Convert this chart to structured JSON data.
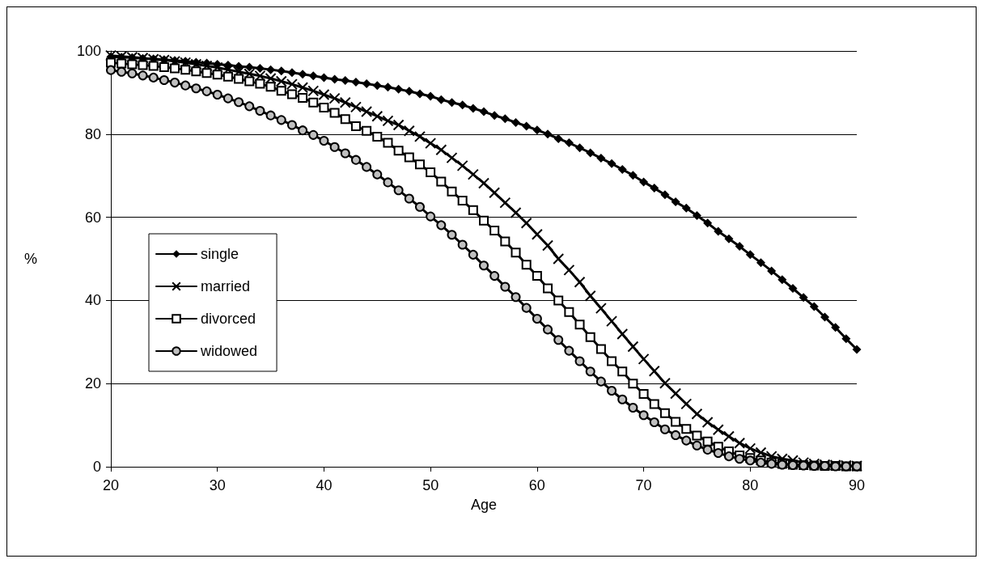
{
  "chart_data": {
    "type": "line",
    "xlabel": "Age",
    "ylabel": "%",
    "x": [
      20,
      21,
      22,
      23,
      24,
      25,
      26,
      27,
      28,
      29,
      30,
      31,
      32,
      33,
      34,
      35,
      36,
      37,
      38,
      39,
      40,
      41,
      42,
      43,
      44,
      45,
      46,
      47,
      48,
      49,
      50,
      51,
      52,
      53,
      54,
      55,
      56,
      57,
      58,
      59,
      60,
      61,
      62,
      63,
      64,
      65,
      66,
      67,
      68,
      69,
      70,
      71,
      72,
      73,
      74,
      75,
      76,
      77,
      78,
      79,
      80,
      81,
      82,
      83,
      84,
      85,
      86,
      87,
      88,
      89,
      90
    ],
    "series": [
      {
        "name": "single",
        "color": "#000000",
        "marker": "diamond",
        "values": [
          98.6,
          98.5,
          98.4,
          98.2,
          98.1,
          97.9,
          97.7,
          97.5,
          97.3,
          97.1,
          96.8,
          96.6,
          96.3,
          96.1,
          95.8,
          95.5,
          95.2,
          94.8,
          94.4,
          94.0,
          93.6,
          93.2,
          92.9,
          92.5,
          92.1,
          91.7,
          91.3,
          90.8,
          90.3,
          89.7,
          89.1,
          88.3,
          87.6,
          87.0,
          86.2,
          85.4,
          84.5,
          83.7,
          82.8,
          81.9,
          81.0,
          80.0,
          78.9,
          77.9,
          76.7,
          75.5,
          74.2,
          72.9,
          71.5,
          70.1,
          68.5,
          67.0,
          65.4,
          63.7,
          62.2,
          60.4,
          58.6,
          56.6,
          54.8,
          53.0,
          51.0,
          49.1,
          47.1,
          45.0,
          42.9,
          40.7,
          38.5,
          36.0,
          33.5,
          30.8,
          28.2
        ]
      },
      {
        "name": "married",
        "color": "#000000",
        "marker": "cross",
        "values": [
          98.9,
          98.7,
          98.5,
          98.3,
          98.0,
          97.8,
          97.5,
          97.2,
          96.8,
          96.4,
          96.0,
          95.5,
          95.0,
          94.5,
          94.0,
          93.4,
          92.7,
          92.0,
          91.2,
          90.4,
          89.5,
          88.6,
          87.6,
          86.5,
          85.4,
          84.3,
          83.2,
          82.2,
          80.8,
          79.4,
          77.8,
          76.2,
          74.3,
          72.4,
          70.3,
          68.2,
          65.9,
          63.5,
          61.1,
          58.6,
          55.9,
          53.2,
          50.0,
          47.3,
          44.4,
          41.1,
          38.1,
          35.0,
          31.9,
          28.9,
          25.9,
          23.0,
          20.1,
          17.6,
          15.1,
          12.7,
          10.7,
          8.9,
          7.3,
          5.7,
          4.4,
          3.4,
          2.5,
          1.9,
          1.5,
          1.0,
          0.7,
          0.5,
          0.4,
          0.3,
          0.2
        ]
      },
      {
        "name": "divorced",
        "color": "#000000",
        "marker": "square",
        "values": [
          97.2,
          97.0,
          96.8,
          96.6,
          96.4,
          96.1,
          95.8,
          95.5,
          95.1,
          94.7,
          94.3,
          93.8,
          93.3,
          92.7,
          92.1,
          91.4,
          90.4,
          89.6,
          88.7,
          87.6,
          86.4,
          85.1,
          83.6,
          81.9,
          80.8,
          79.4,
          77.9,
          76.0,
          74.4,
          72.7,
          70.8,
          68.6,
          66.2,
          64.0,
          61.7,
          59.2,
          56.8,
          54.2,
          51.5,
          48.6,
          45.9,
          42.9,
          40.0,
          37.2,
          34.2,
          31.2,
          28.3,
          25.4,
          22.9,
          20.0,
          17.5,
          15.1,
          12.9,
          10.8,
          9.1,
          7.5,
          6.1,
          4.8,
          3.7,
          2.7,
          2.1,
          1.5,
          1.0,
          0.7,
          0.5,
          0.4,
          0.3,
          0.2,
          0.2,
          0.1,
          0.1
        ]
      },
      {
        "name": "widowed",
        "color": "#000000",
        "marker": "circle",
        "values": [
          95.4,
          95.0,
          94.6,
          94.1,
          93.6,
          93.0,
          92.4,
          91.7,
          91.0,
          90.3,
          89.5,
          88.6,
          87.7,
          86.7,
          85.6,
          84.5,
          83.4,
          82.2,
          80.9,
          79.8,
          78.4,
          76.9,
          75.4,
          73.8,
          72.1,
          70.3,
          68.4,
          66.5,
          64.5,
          62.5,
          60.2,
          58.1,
          55.8,
          53.4,
          51.0,
          48.4,
          45.9,
          43.3,
          40.8,
          38.2,
          35.6,
          33.0,
          30.5,
          27.9,
          25.4,
          22.9,
          20.5,
          18.3,
          16.2,
          14.2,
          12.4,
          10.7,
          9.0,
          7.6,
          6.3,
          5.1,
          4.1,
          3.3,
          2.5,
          1.9,
          1.5,
          1.0,
          0.7,
          0.5,
          0.4,
          0.3,
          0.2,
          0.2,
          0.1,
          0.1,
          0.1
        ]
      }
    ],
    "xlim": [
      20,
      90
    ],
    "xticks": [
      20,
      30,
      40,
      50,
      60,
      70,
      80,
      90
    ],
    "ylim": [
      0,
      100
    ],
    "yticks": [
      0,
      20,
      40,
      60,
      80,
      100
    ],
    "grid": "y",
    "legend": "left"
  }
}
